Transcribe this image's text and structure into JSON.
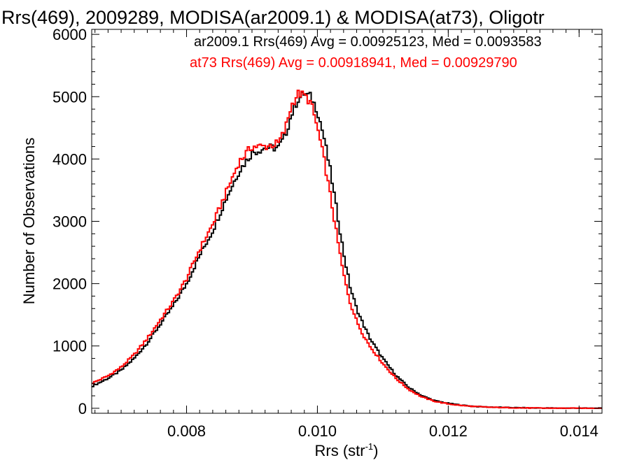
{
  "chart_data": {
    "type": "line",
    "step": true,
    "title": "Rrs(469), 2009289, MODISA(ar2009.1) & MODISA(at73), Oligotr",
    "xlabel_main": "Rrs (str",
    "xlabel_sup": "-1",
    "xlabel_tail": ")",
    "ylabel": "Number of Observations",
    "xlim": [
      0.00655,
      0.01435
    ],
    "ylim": [
      -80,
      6080
    ],
    "xticks": [
      {
        "value": 0.008,
        "label": "0.008"
      },
      {
        "value": 0.01,
        "label": "0.010"
      },
      {
        "value": 0.012,
        "label": "0.012"
      },
      {
        "value": 0.014,
        "label": "0.014"
      }
    ],
    "yticks": [
      {
        "value": 0,
        "label": "0"
      },
      {
        "value": 1000,
        "label": "1000"
      },
      {
        "value": 2000,
        "label": "2000"
      },
      {
        "value": 3000,
        "label": "3000"
      },
      {
        "value": 4000,
        "label": "4000"
      },
      {
        "value": 5000,
        "label": "5000"
      },
      {
        "value": 6000,
        "label": "6000"
      }
    ],
    "legend": {
      "placement": "top-right",
      "entries": [
        {
          "text": "ar2009.1 Rrs(469) Avg = 0.00925123, Med = 0.0093583",
          "color": "#000000"
        },
        {
          "text": "at73 Rrs(469) Avg = 0.00918941, Med = 0.00929790",
          "color": "#ff0000"
        }
      ]
    },
    "series": [
      {
        "name": "ar2009.1",
        "color": "#000000",
        "x": [
          0.00655,
          0.0068,
          0.007,
          0.0072,
          0.0074,
          0.0076,
          0.0078,
          0.008,
          0.0082,
          0.0084,
          0.0086,
          0.0088,
          0.009,
          0.0092,
          0.0094,
          0.0095,
          0.0096,
          0.0097,
          0.0098,
          0.0099,
          0.01,
          0.0101,
          0.0102,
          0.0103,
          0.0104,
          0.0105,
          0.0106,
          0.0107,
          0.0108,
          0.0109,
          0.011,
          0.0112,
          0.0114,
          0.0116,
          0.0118,
          0.012,
          0.0122,
          0.0124,
          0.0126,
          0.0128,
          0.013,
          0.0132,
          0.0135,
          0.01435
        ],
        "y": [
          350,
          480,
          610,
          800,
          1050,
          1350,
          1650,
          2000,
          2450,
          2850,
          3350,
          3800,
          4100,
          4180,
          4180,
          4350,
          4700,
          4950,
          5050,
          5000,
          4780,
          4350,
          3800,
          3150,
          2500,
          1950,
          1600,
          1350,
          1130,
          960,
          800,
          530,
          330,
          200,
          120,
          80,
          50,
          30,
          20,
          15,
          10,
          6,
          3,
          0
        ]
      },
      {
        "name": "at73",
        "color": "#ff0000",
        "x": [
          0.00655,
          0.0068,
          0.007,
          0.0072,
          0.0074,
          0.0076,
          0.0078,
          0.008,
          0.0082,
          0.0084,
          0.0086,
          0.0088,
          0.009,
          0.0092,
          0.0094,
          0.0095,
          0.0096,
          0.0097,
          0.0098,
          0.0099,
          0.01,
          0.0101,
          0.0102,
          0.0103,
          0.0104,
          0.0105,
          0.0106,
          0.0107,
          0.0108,
          0.0109,
          0.011,
          0.0112,
          0.0114,
          0.0116,
          0.0118,
          0.012,
          0.0122,
          0.0124,
          0.0126,
          0.0128,
          0.013,
          0.0132,
          0.0135,
          0.01435
        ],
        "y": [
          400,
          520,
          660,
          860,
          1120,
          1420,
          1720,
          2080,
          2550,
          2950,
          3450,
          3950,
          4200,
          4200,
          4250,
          4450,
          4850,
          5050,
          5020,
          4900,
          4500,
          4000,
          3400,
          2750,
          2150,
          1700,
          1400,
          1180,
          1000,
          860,
          720,
          480,
          300,
          180,
          110,
          70,
          45,
          28,
          18,
          12,
          8,
          5,
          2,
          0
        ]
      }
    ],
    "colors": {
      "axes": "#000000",
      "background": "#ffffff"
    }
  }
}
